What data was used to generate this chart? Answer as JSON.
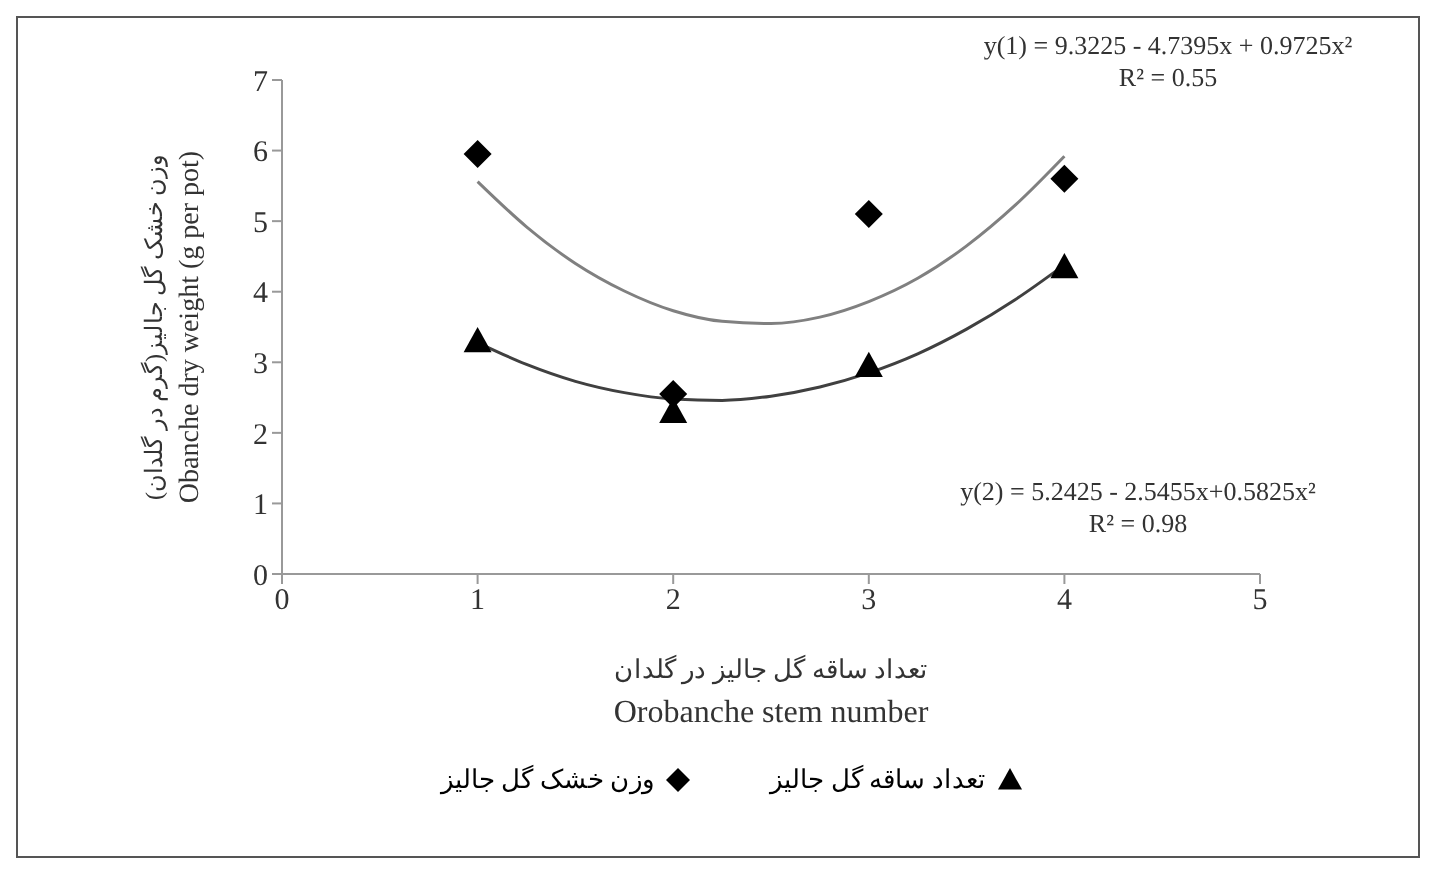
{
  "chart_data": {
    "type": "scatter",
    "xlabel": "تعداد ساقه گل جالیز در گلدان\nOrobanche stem number",
    "ylabel": "وزن خشک گل جالیز(گرم در گلدان)\nObanche dry weight (g per pot)",
    "x": [
      1,
      2,
      3,
      4
    ],
    "series": [
      {
        "name": "وزن خشک گل جالیز",
        "color": "#000000",
        "marker": "diamond",
        "values": [
          5.95,
          2.55,
          5.1,
          5.6
        ]
      },
      {
        "name": "تعداد ساقه گل جالیز",
        "color": "#000000",
        "marker": "triangle",
        "values": [
          3.3,
          2.3,
          2.95,
          4.35
        ]
      },
      {
        "type": "line",
        "color": "#808080",
        "marker": "none",
        "x": [
          1,
          1.25,
          1.5,
          1.75,
          2,
          2.25,
          2.5,
          2.75,
          3,
          3.25,
          3.5,
          3.75,
          4
        ],
        "values": [
          5.56,
          4.92,
          4.4,
          4.01,
          3.73,
          3.58,
          3.55,
          3.64,
          3.86,
          4.19,
          4.65,
          5.23,
          5.92
        ]
      },
      {
        "type": "line",
        "color": "#404040",
        "marker": "none",
        "x": [
          1,
          1.25,
          1.5,
          1.75,
          2,
          2.25,
          2.5,
          2.75,
          3,
          3.25,
          3.5,
          3.75,
          4
        ],
        "values": [
          3.28,
          2.97,
          2.73,
          2.57,
          2.48,
          2.46,
          2.52,
          2.65,
          2.85,
          3.12,
          3.47,
          3.89,
          4.38
        ]
      }
    ],
    "annotations": [
      "y(1) = 9.3225 - 4.7395x + 0.9725x²\nR² = 0.55",
      "y(2) = 5.2425 - 2.5455x+0.5825x²\nR² = 0.98"
    ],
    "xlim": [
      0,
      5
    ],
    "xticks": [
      0,
      1,
      2,
      3,
      4,
      5
    ],
    "ylim": [
      0,
      7
    ],
    "yticks": [
      0,
      1,
      2,
      3,
      4,
      5,
      6,
      7
    ],
    "grid": false,
    "legend": "bottom"
  }
}
